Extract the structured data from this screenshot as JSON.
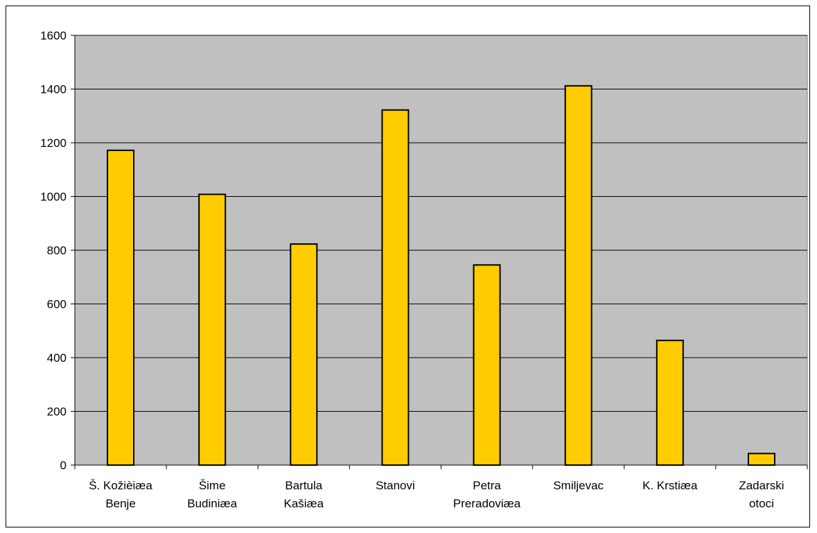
{
  "chart_data": {
    "type": "bar",
    "categories": [
      [
        "Š. Kožièiæa",
        "Benje"
      ],
      [
        "Šime",
        "Budiniæa"
      ],
      [
        "Bartula",
        "Kašiæa"
      ],
      [
        "Stanovi"
      ],
      [
        "Petra",
        "Preradoviæa"
      ],
      [
        "Smiljevac"
      ],
      [
        "K. Krstiæa"
      ],
      [
        "Zadarski",
        "otoci"
      ]
    ],
    "values": [
      1172,
      1008,
      823,
      1322,
      745,
      1412,
      464,
      43
    ],
    "ylim": [
      0,
      1600
    ],
    "yticks": [
      "0",
      "200",
      "400",
      "600",
      "800",
      "1000",
      "1200",
      "1400",
      "1600"
    ],
    "grid": true,
    "legend": "none",
    "colors": {
      "bar_fill": "#ffcc00",
      "bar_stroke": "#000000",
      "plot_bg": "#c0c0c0",
      "gridline": "#000000"
    }
  }
}
